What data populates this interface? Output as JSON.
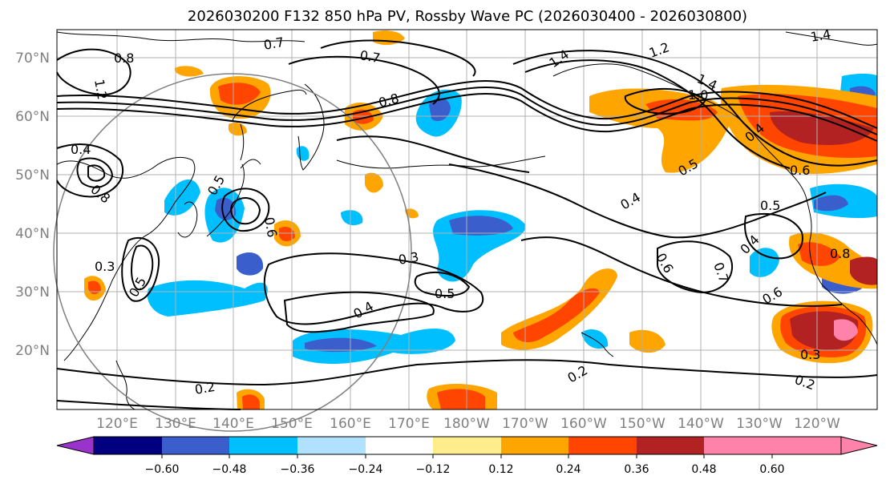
{
  "title": "2026030200 F132 850 hPa PV, Rossby Wave PC (2026030400 - 2026030800)",
  "map": {
    "lat_labels": [
      "70°N",
      "60°N",
      "50°N",
      "40°N",
      "30°N",
      "20°N"
    ],
    "lon_labels": [
      "120°E",
      "130°E",
      "140°E",
      "150°E",
      "160°E",
      "170°E",
      "180°W",
      "170°W",
      "160°W",
      "150°W",
      "140°W",
      "130°W",
      "120°W"
    ],
    "contour_labels": [
      "1.2",
      "0.8",
      "0.7",
      "0.7",
      "1.4",
      "1.2",
      "1.4",
      "1.0",
      "1.4",
      "0.8",
      "0.4",
      "0.8",
      "0.5",
      "0.6",
      "0.3",
      "0.5",
      "0.3",
      "0.5",
      "0.4",
      "0.4",
      "0.5",
      "0.6",
      "0.7",
      "0.4",
      "0.6",
      "0.5",
      "0.4",
      "0.6",
      "0.8",
      "0.3",
      "0.2",
      "0.2",
      "0.2"
    ]
  },
  "colorbar": {
    "tick_labels": [
      "−0.60",
      "−0.48",
      "−0.36",
      "−0.24",
      "−0.12",
      "0.12",
      "0.24",
      "0.36",
      "0.48",
      "0.60"
    ],
    "colors": [
      "#9933cc",
      "#000080",
      "#3a5fcd",
      "#00bfff",
      "#b0e2ff",
      "#ffffff",
      "#ffec8b",
      "#ffa500",
      "#ff4500",
      "#b22222",
      "#ff82ab"
    ]
  }
}
